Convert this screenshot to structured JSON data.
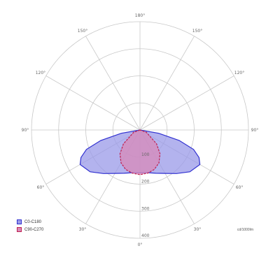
{
  "chart_data": {
    "type": "polar",
    "title": "",
    "units_label": "cd/1000lm",
    "radial_ticks": [
      "100",
      "200",
      "300",
      "400"
    ],
    "radial_max": 400,
    "angle_labels": [
      {
        "angle": 0,
        "label": "0°"
      },
      {
        "angle": 30,
        "label": "30°"
      },
      {
        "angle": 60,
        "label": "60°"
      },
      {
        "angle": 90,
        "label": "90°"
      },
      {
        "angle": 120,
        "label": "120°"
      },
      {
        "angle": 150,
        "label": "150°"
      },
      {
        "angle": 180,
        "label": "180°"
      },
      {
        "angle": -150,
        "label": "150°"
      },
      {
        "angle": -120,
        "label": "120°"
      },
      {
        "angle": -90,
        "label": "90°"
      },
      {
        "angle": -60,
        "label": "60°"
      },
      {
        "angle": -30,
        "label": "30°"
      }
    ],
    "series": [
      {
        "name": "C0-C180",
        "color": "#3030d0",
        "fill": "#9a9ae8",
        "points": [
          [
            -90,
            0
          ],
          [
            -80,
            70
          ],
          [
            -75,
            150
          ],
          [
            -70,
            210
          ],
          [
            -65,
            240
          ],
          [
            -60,
            255
          ],
          [
            -50,
            240
          ],
          [
            -40,
            210
          ],
          [
            -30,
            185
          ],
          [
            -20,
            170
          ],
          [
            -10,
            160
          ],
          [
            0,
            158
          ],
          [
            10,
            160
          ],
          [
            20,
            170
          ],
          [
            30,
            185
          ],
          [
            40,
            210
          ],
          [
            50,
            240
          ],
          [
            60,
            255
          ],
          [
            65,
            240
          ],
          [
            70,
            210
          ],
          [
            75,
            150
          ],
          [
            80,
            70
          ],
          [
            90,
            0
          ]
        ]
      },
      {
        "name": "C90-C270",
        "color": "#c02050",
        "fill": "#d88ab8",
        "points": [
          [
            -90,
            0
          ],
          [
            -70,
            25
          ],
          [
            -50,
            80
          ],
          [
            -40,
            115
          ],
          [
            -30,
            140
          ],
          [
            -20,
            155
          ],
          [
            -10,
            162
          ],
          [
            0,
            165
          ],
          [
            10,
            162
          ],
          [
            20,
            155
          ],
          [
            30,
            140
          ],
          [
            40,
            115
          ],
          [
            50,
            80
          ],
          [
            70,
            25
          ],
          [
            90,
            0
          ]
        ]
      }
    ]
  },
  "legend": [
    {
      "label": "C0-C180",
      "color": "#3030d0"
    },
    {
      "label": "C90-C270",
      "color": "#c02050"
    }
  ]
}
